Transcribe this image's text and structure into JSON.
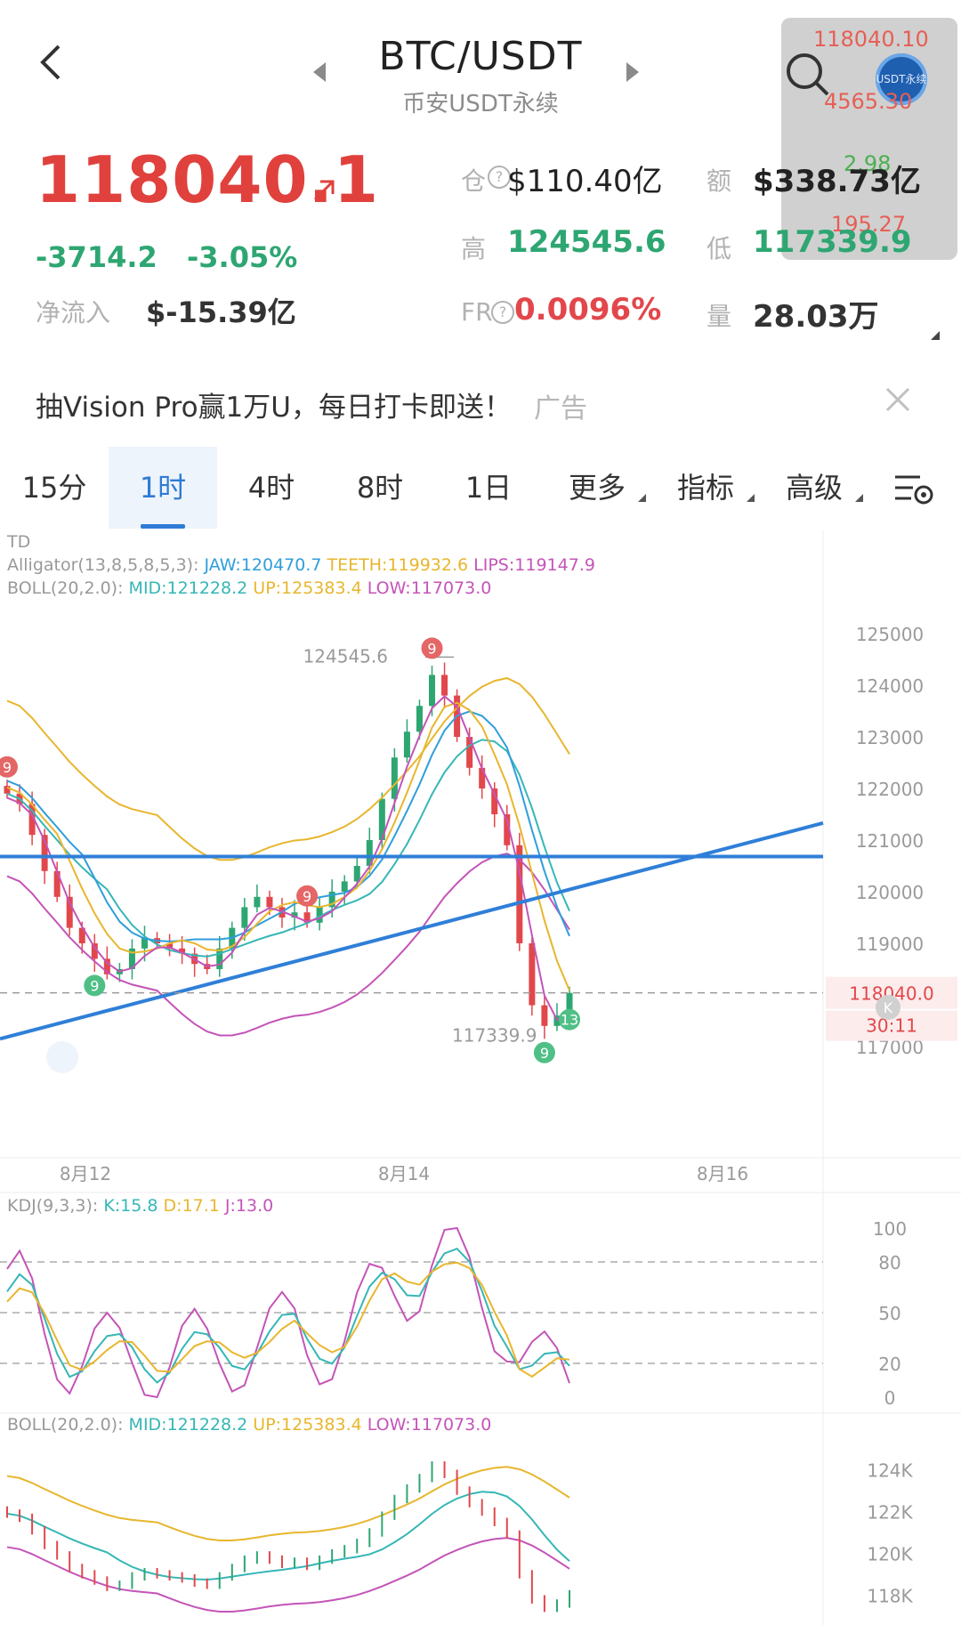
{
  "header": {
    "title": "BTC/USDT",
    "subtitle": "币安USDT永续"
  },
  "floating_widget": {
    "price": "118040.10",
    "label": "USDT永续",
    "value2": "4565.30",
    "value3": "2.98",
    "value4": "195.27"
  },
  "ticker": {
    "last_price": "118040.1",
    "change": "-3714.2",
    "change_pct": "-3.05%",
    "net_inflow_label": "净流入",
    "net_inflow_value": "$-15.39亿",
    "open_interest_label": "仓",
    "open_interest_value": "$110.40亿",
    "turnover_label": "额",
    "turnover_value": "$338.73亿",
    "high_label": "高",
    "high_value": "124545.6",
    "low_label": "低",
    "low_value": "117339.9",
    "funding_label": "FR",
    "funding_value": "0.0096%",
    "volume_label": "量",
    "volume_value": "28.03万"
  },
  "ad": {
    "text": "抽Vision Pro赢1万U，每日打卡即送！",
    "tag": "广告"
  },
  "tabs": [
    {
      "label": "15分"
    },
    {
      "label": "1时",
      "active": true
    },
    {
      "label": "4时"
    },
    {
      "label": "8时"
    },
    {
      "label": "1日"
    },
    {
      "label": "更多"
    },
    {
      "label": "指标"
    },
    {
      "label": "高级"
    }
  ],
  "main_chart": {
    "indicator_td": "TD",
    "alligator_label": "Alligator(13,8,5,8,5,3):",
    "alligator_jaw": "JAW:120470.7",
    "alligator_teeth": "TEETH:119932.6",
    "alligator_lips": "LIPS:119147.9",
    "boll_label": "BOLL(20,2.0):",
    "boll_mid": "MID:121228.2",
    "boll_up": "UP:125383.4",
    "boll_low": "LOW:117073.0",
    "high_marker": "124545.6",
    "low_marker": "117339.9",
    "current_price_tag": "118040.0",
    "countdown": "30:11",
    "y_ticks": [
      "125000",
      "124000",
      "123000",
      "122000",
      "121000",
      "120000",
      "119000",
      "117000"
    ],
    "x_ticks": [
      "8月12",
      "8月14",
      "8月16"
    ],
    "td_badges": [
      "9",
      "9",
      "9",
      "9",
      "9",
      "13"
    ]
  },
  "kdj_panel": {
    "label": "KDJ(9,3,3):",
    "k": "K:15.8",
    "d": "D:17.1",
    "j": "J:13.0",
    "y_ticks": [
      "100",
      "80",
      "50",
      "20",
      "0"
    ]
  },
  "boll_panel": {
    "label": "BOLL(20,2.0):",
    "mid": "MID:121228.2",
    "up": "UP:125383.4",
    "low": "LOW:117073.0",
    "y_ticks": [
      "124K",
      "122K",
      "120K",
      "118K"
    ]
  },
  "chart_data": {
    "type": "candlestick",
    "symbol": "BTC/USDT",
    "interval": "1时",
    "ylim": [
      116600,
      125600
    ],
    "x_ticks": [
      "8月12",
      "8月14",
      "8月16"
    ],
    "close_path": [
      121900,
      121700,
      121100,
      120400,
      119900,
      119300,
      119000,
      118700,
      118400,
      118500,
      118900,
      119100,
      119000,
      118900,
      118800,
      118600,
      118500,
      118900,
      119300,
      119700,
      119900,
      119700,
      119500,
      119600,
      119400,
      119700,
      120000,
      120200,
      120500,
      121000,
      121800,
      122600,
      123100,
      123600,
      124200,
      123800,
      123000,
      122400,
      122000,
      121500,
      120900,
      119000,
      117800,
      117400,
      117600,
      118040
    ],
    "high": 124545.6,
    "low": 117339.9,
    "last": 118040.0,
    "trendlines": [
      {
        "name": "horizontal",
        "from": [
          0,
          120680
        ],
        "to": [
          1,
          120680
        ]
      },
      {
        "name": "rising",
        "from": [
          0,
          117150
        ],
        "to": [
          1,
          121330
        ]
      }
    ],
    "colors": {
      "up": "#2ea672",
      "down": "#e2474b",
      "trendline": "#2f7fd8",
      "jaw": "#2f9edb",
      "teeth": "#e8b62e",
      "lips": "#c454b8",
      "boll_mid": "#36b6b6",
      "boll_up": "#e8b62e",
      "boll_low": "#c454b8"
    }
  },
  "icons": [
    "back-arrow-icon",
    "prev-symbol-icon",
    "next-symbol-icon",
    "search-icon",
    "close-icon",
    "chart-settings-icon",
    "expand-icon",
    "k-logo-icon"
  ]
}
